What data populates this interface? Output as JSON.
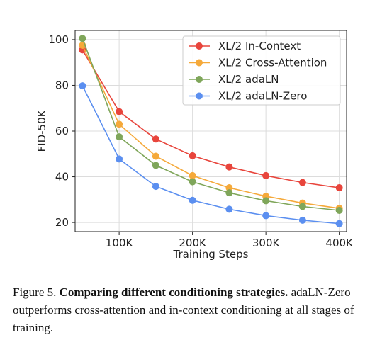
{
  "chart_data": {
    "type": "line",
    "xlabel": "Training Steps",
    "ylabel": "FID-50K",
    "xlim": [
      40000,
      410000
    ],
    "ylim": [
      16,
      104
    ],
    "x_ticks": [
      100000,
      200000,
      300000,
      400000
    ],
    "x_tick_labels": [
      "100K",
      "200K",
      "300K",
      "400K"
    ],
    "y_ticks": [
      20,
      40,
      60,
      80,
      100
    ],
    "y_tick_labels": [
      "20",
      "40",
      "60",
      "80",
      "100"
    ],
    "grid": true,
    "legend_position": "top-right",
    "x": [
      50000,
      100000,
      150000,
      200000,
      250000,
      300000,
      350000,
      400000
    ],
    "series": [
      {
        "name": "XL/2 In-Context",
        "color": "#e8453c",
        "values": [
          95.5,
          68.5,
          56.5,
          49.2,
          44.3,
          40.5,
          37.5,
          35.2
        ]
      },
      {
        "name": "XL/2 Cross-Attention",
        "color": "#f5a93a",
        "values": [
          97.5,
          63.0,
          49.0,
          40.5,
          35.2,
          31.5,
          28.5,
          26.2
        ]
      },
      {
        "name": "XL/2 adaLN",
        "color": "#7fa65a",
        "values": [
          100.5,
          57.5,
          45.0,
          37.8,
          33.0,
          29.5,
          27.0,
          25.3
        ]
      },
      {
        "name": "XL/2 adaLN-Zero",
        "color": "#5b8ff0",
        "values": [
          79.8,
          47.8,
          35.8,
          29.7,
          25.8,
          23.0,
          21.0,
          19.5
        ]
      }
    ]
  },
  "caption": {
    "prefix": "Figure 5.",
    "bold": "Comparing different conditioning strategies.",
    "rest": "adaLN-Zero outperforms cross-attention and in-context conditioning at all stages of training."
  }
}
